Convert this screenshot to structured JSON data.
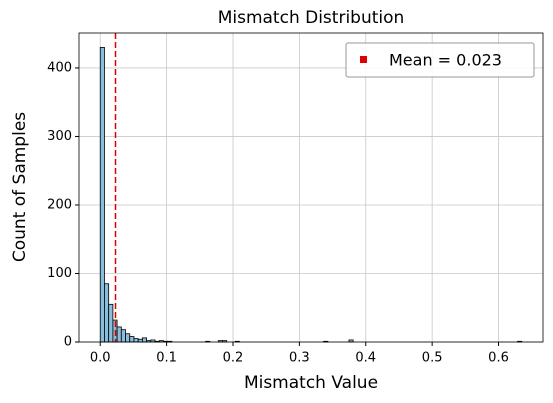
{
  "chart_data": {
    "type": "histogram",
    "title": "Mismatch Distribution",
    "x_label": "Mismatch Value",
    "y_label": "Count of Samples",
    "bins": [
      0,
      0.00635,
      0.0127,
      0.01905,
      0.0254,
      0.03175,
      0.0381,
      0.04445,
      0.0508,
      0.05715,
      0.0635,
      0.06985,
      0.0762,
      0.08255,
      0.0889,
      0.09525,
      0.1016,
      0.10795,
      0.1143,
      0.12065,
      0.127,
      0.13335,
      0.1397,
      0.14605,
      0.1524,
      0.15875,
      0.1651,
      0.17145,
      0.1778,
      0.18415,
      0.1905,
      0.19685,
      0.2032,
      0.20955,
      0.2159,
      0.22225,
      0.2286,
      0.23495,
      0.2413,
      0.24765,
      0.254,
      0.26035,
      0.2667,
      0.27305,
      0.2794,
      0.28575,
      0.2921,
      0.29845,
      0.3048,
      0.31115,
      0.3175,
      0.32385,
      0.3302,
      0.33655,
      0.3429,
      0.34925,
      0.3556,
      0.36195,
      0.3683,
      0.37465,
      0.381,
      0.38735,
      0.3937,
      0.40005,
      0.4064,
      0.41275,
      0.4191,
      0.42545,
      0.4318,
      0.43815,
      0.4445,
      0.45085,
      0.4572,
      0.46355,
      0.4699,
      0.47625,
      0.4826,
      0.48895,
      0.4953,
      0.50165,
      0.508,
      0.51435,
      0.5207,
      0.52705,
      0.5334,
      0.53975,
      0.5461,
      0.55245,
      0.5588,
      0.56515,
      0.5715,
      0.57785,
      0.5842,
      0.59055,
      0.5969,
      0.60325,
      0.6096,
      0.61595,
      0.6223,
      0.62865,
      0.635
    ],
    "values": [
      430,
      85,
      55,
      32,
      22,
      18,
      12,
      8,
      5,
      4,
      6,
      2,
      3,
      1,
      2,
      1,
      1,
      0,
      0,
      0,
      0,
      0,
      0,
      0,
      0,
      1,
      0,
      0,
      2,
      2,
      0,
      0,
      1,
      0,
      0,
      0,
      0,
      0,
      0,
      0,
      0,
      0,
      0,
      0,
      0,
      0,
      0,
      0,
      0,
      0,
      0,
      0,
      0,
      1,
      0,
      0,
      0,
      0,
      0,
      3,
      0,
      0,
      0,
      0,
      0,
      0,
      0,
      0,
      0,
      0,
      0,
      0,
      0,
      0,
      0,
      0,
      0,
      0,
      0,
      0,
      0,
      0,
      0,
      0,
      0,
      0,
      0,
      0,
      0,
      0,
      0,
      0,
      0,
      0,
      0,
      0,
      0,
      0,
      0,
      1
    ],
    "color": "#89bedc",
    "edgecolor": "#000000",
    "vline": {
      "x": 0.023,
      "label": "Mean = 0.023",
      "color": "#e00000"
    },
    "legend": "upper right",
    "xlim": [
      -0.032,
      0.667
    ],
    "xticks": [
      {
        "value": 0,
        "label": "0.0"
      },
      0.1,
      0.2,
      0.3,
      0.4,
      0.5,
      0.6
    ],
    "ylim": [
      0,
      451
    ],
    "yticks": [
      0,
      100,
      200,
      300,
      400
    ],
    "grid": true
  }
}
